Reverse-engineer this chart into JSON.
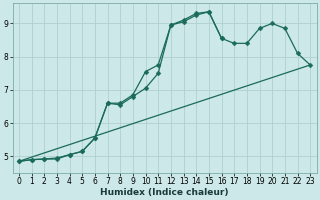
{
  "xlabel": "Humidex (Indice chaleur)",
  "bg_color": "#cce8e8",
  "line_color": "#1a6b5a",
  "grid_color": "#b0d0d0",
  "xlim": [
    -0.5,
    23.5
  ],
  "ylim": [
    4.5,
    9.6
  ],
  "xticks": [
    0,
    1,
    2,
    3,
    4,
    5,
    6,
    7,
    8,
    9,
    10,
    11,
    12,
    13,
    14,
    15,
    16,
    17,
    18,
    19,
    20,
    21,
    22,
    23
  ],
  "yticks": [
    5,
    6,
    7,
    8,
    9
  ],
  "line1_y": [
    4.85,
    4.9,
    4.92,
    4.92,
    5.05,
    5.15,
    5.55,
    6.6,
    6.55,
    6.8,
    7.05,
    7.5,
    8.95,
    9.05,
    9.25,
    9.35,
    8.55,
    null,
    null,
    null,
    null,
    null,
    null,
    null
  ],
  "line2_y": [
    4.85,
    4.9,
    4.92,
    4.95,
    5.05,
    5.15,
    5.55,
    6.6,
    6.6,
    6.85,
    7.55,
    7.75,
    8.95,
    9.1,
    9.3,
    9.35,
    8.55,
    8.4,
    8.4,
    8.85,
    9.0,
    8.85,
    8.1,
    7.75
  ],
  "line3_y": [
    4.85,
    null,
    null,
    null,
    null,
    null,
    null,
    null,
    null,
    null,
    null,
    null,
    null,
    null,
    null,
    null,
    null,
    null,
    null,
    null,
    null,
    null,
    null,
    7.75
  ],
  "marker": "D",
  "markersize": 2.5,
  "linewidth": 0.9,
  "tick_fontsize": 5.5,
  "xlabel_fontsize": 6.5
}
